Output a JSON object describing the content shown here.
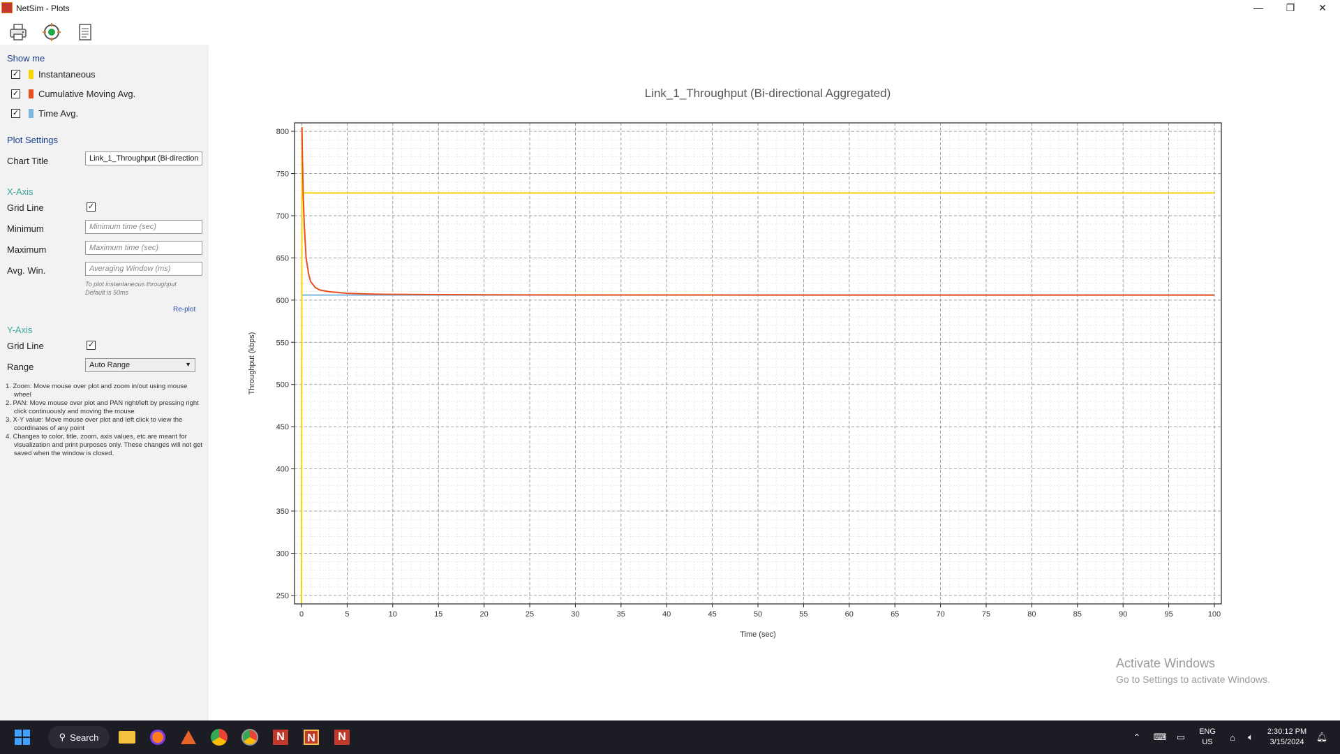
{
  "window": {
    "title": "NetSim - Plots",
    "minimize": "—",
    "maximize": "❐",
    "close": "✕"
  },
  "toolbar": {
    "print_icon": "printer-icon",
    "target_icon": "target-icon",
    "report_icon": "document-icon"
  },
  "show_me": {
    "heading": "Show me",
    "items": [
      {
        "label": "Instantaneous",
        "checked": true,
        "color": "#f5d400"
      },
      {
        "label": "Cumulative Moving Avg.",
        "checked": true,
        "color": "#e8501e"
      },
      {
        "label": "Time Avg.",
        "checked": true,
        "color": "#7fb7df"
      }
    ]
  },
  "plot_settings": {
    "heading": "Plot Settings",
    "chart_title_label": "Chart Title",
    "chart_title_value": "Link_1_Throughput (Bi-directional Aggregated)"
  },
  "x_axis": {
    "heading": "X-Axis",
    "grid_line_label": "Grid Line",
    "grid_line_checked": true,
    "minimum_label": "Minimum",
    "minimum_placeholder": "Minimum time (sec)",
    "maximum_label": "Maximum",
    "maximum_placeholder": "Maximum time (sec)",
    "avg_win_label": "Avg. Win.",
    "avg_win_placeholder": "Averaging Window (ms)",
    "hint_line1": "To plot instantaneous throughput",
    "hint_line2": "Default is 50ms",
    "replot_label": "Re-plot"
  },
  "y_axis": {
    "heading": "Y-Axis",
    "grid_line_label": "Grid Line",
    "grid_line_checked": true,
    "range_label": "Range",
    "range_value": "Auto Range"
  },
  "notes": [
    "1. Zoom: Move mouse over plot and zoom in/out using mouse wheel",
    "2. PAN: Move mouse over plot and PAN right/left by pressing right click continuously and moving the mouse",
    "3. X-Y value: Move mouse over plot and left click to view the coordinates of any point",
    "4. Changes to color, title, zoom, axis values, etc are meant for visualization and print purposes only. These changes will not get saved when the window is closed."
  ],
  "chart_data": {
    "type": "line",
    "title": "Link_1_Throughput (Bi-directional Aggregated)",
    "xlabel": "Time (sec)",
    "ylabel": "Throughput (kbps)",
    "xlim": [
      0,
      100
    ],
    "ylim": [
      240,
      810
    ],
    "x_ticks": [
      0,
      5,
      10,
      15,
      20,
      25,
      30,
      35,
      40,
      45,
      50,
      55,
      60,
      65,
      70,
      75,
      80,
      85,
      90,
      95,
      100
    ],
    "y_ticks": [
      250,
      300,
      350,
      400,
      450,
      500,
      550,
      600,
      650,
      700,
      750,
      800
    ],
    "grid": true,
    "series": [
      {
        "name": "Instantaneous",
        "color": "#f5d400",
        "x": [
          0,
          0.05,
          0.1,
          100
        ],
        "y": [
          240,
          800,
          727,
          727
        ]
      },
      {
        "name": "Cumulative Moving Avg.",
        "color": "#e8501e",
        "x": [
          0.05,
          0.1,
          0.2,
          0.3,
          0.5,
          0.8,
          1,
          1.5,
          2,
          3,
          5,
          8,
          10,
          15,
          20,
          30,
          50,
          100
        ],
        "y": [
          805,
          770,
          720,
          690,
          650,
          630,
          622,
          615,
          612,
          610,
          608,
          607,
          606.8,
          606.5,
          606.3,
          606.1,
          606,
          606
        ]
      },
      {
        "name": "Time Avg.",
        "color": "#7fb7df",
        "x": [
          0,
          100
        ],
        "y": [
          606,
          606
        ]
      }
    ]
  },
  "watermark": {
    "line1": "Activate Windows",
    "line2": "Go to Settings to activate Windows."
  },
  "taskbar": {
    "search_label": "Search",
    "lang_line1": "ENG",
    "lang_line2": "US",
    "time": "2:30:12 PM",
    "date": "3/15/2024"
  }
}
